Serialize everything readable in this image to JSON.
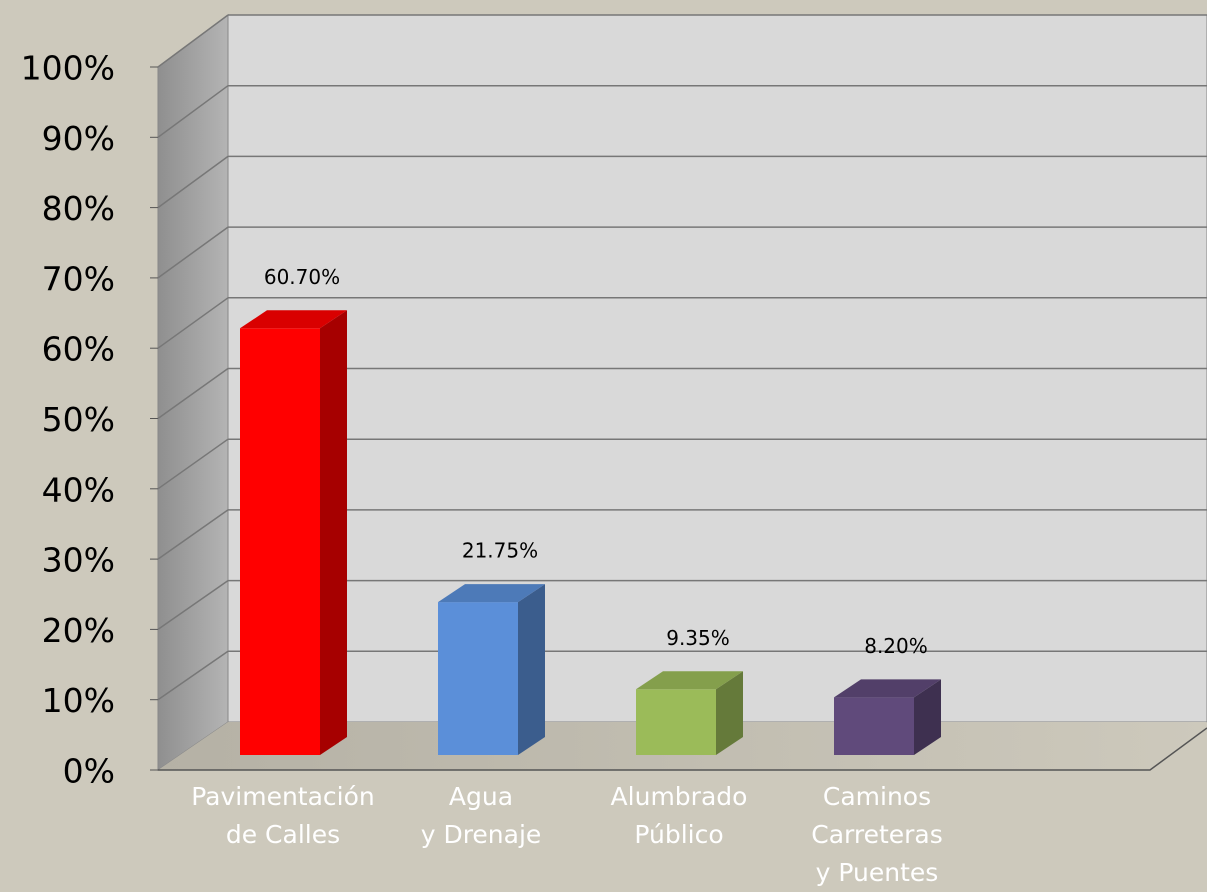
{
  "chart_data": {
    "type": "bar3d",
    "categories": [
      "Pavimentación\nde Calles",
      "Agua\ny Drenaje",
      "Alumbrado\nPúblico",
      "Caminos\nCarreteras\ny Puentes"
    ],
    "values": [
      60.7,
      21.75,
      9.35,
      8.2
    ],
    "value_labels": [
      "60.70%",
      "21.75%",
      "9.35%",
      "8.20%"
    ],
    "colors": [
      "#ff0000",
      "#5b8fd9",
      "#9bbb59",
      "#604a7b"
    ],
    "ylim": [
      0,
      100
    ],
    "yticks": [
      {
        "value": 0,
        "label": "0%"
      },
      {
        "value": 10,
        "label": "10%"
      },
      {
        "value": 20,
        "label": "20%"
      },
      {
        "value": 30,
        "label": "30%"
      },
      {
        "value": 40,
        "label": "40%"
      },
      {
        "value": 50,
        "label": "50%"
      },
      {
        "value": 60,
        "label": "60%"
      },
      {
        "value": 70,
        "label": "70%"
      },
      {
        "value": 80,
        "label": "80%"
      },
      {
        "value": 90,
        "label": "90%"
      },
      {
        "value": 100,
        "label": "100%"
      }
    ],
    "grid": true
  }
}
